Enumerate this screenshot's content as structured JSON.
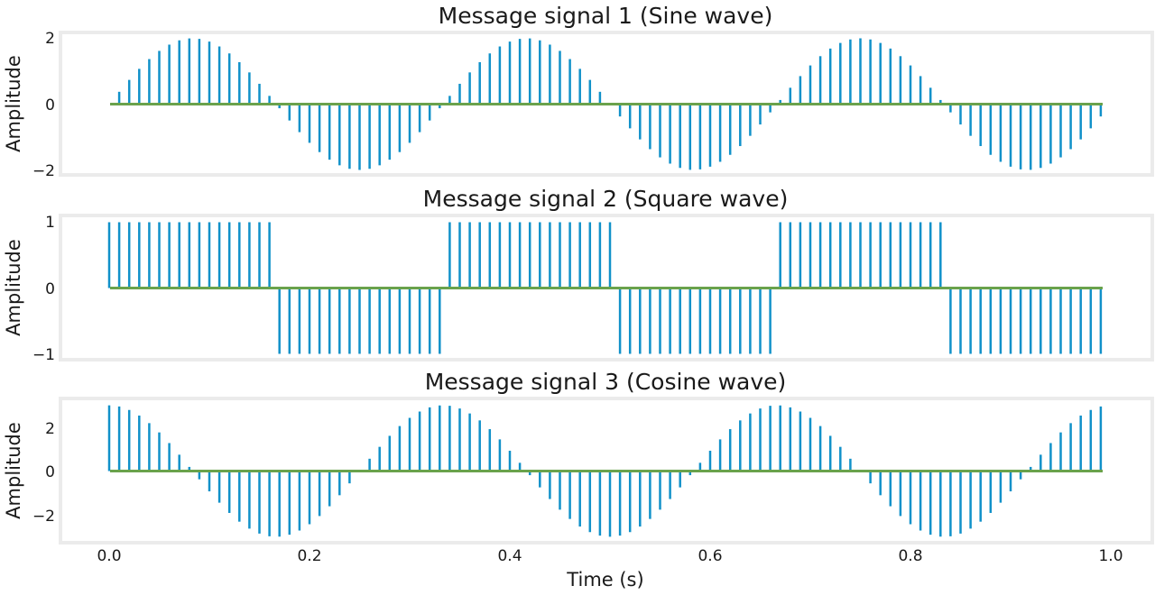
{
  "colors": {
    "stem": "#1191c9",
    "baseline": "#6aa24c",
    "frame": "#ebebeb"
  },
  "xlabel": "Time (s)",
  "xticks": [
    0.0,
    0.2,
    0.4,
    0.6,
    0.8,
    1.0
  ],
  "xtick_labels": [
    "0.0",
    "0.2",
    "0.4",
    "0.6",
    "0.8",
    "1.0"
  ],
  "xlim": [
    -0.05,
    1.04
  ],
  "chart_data": [
    {
      "type": "stem",
      "title": "Message signal 1 (Sine wave)",
      "ylabel": "Amplitude",
      "ylim": [
        -2.1,
        2.1
      ],
      "yticks": [
        -2,
        0,
        2
      ],
      "ytick_labels": [
        "−2",
        "0",
        "2"
      ],
      "signal": "sine",
      "amplitude": 2,
      "frequency_hz": 3,
      "sample_interval_s": 0.01,
      "t_start": 0.0,
      "t_end": 0.99
    },
    {
      "type": "stem",
      "title": "Message signal 2 (Square wave)",
      "ylabel": "Amplitude",
      "ylim": [
        -1.05,
        1.05
      ],
      "yticks": [
        -1,
        0,
        1
      ],
      "ytick_labels": [
        "−1",
        "0",
        "1"
      ],
      "signal": "square",
      "amplitude": 1,
      "frequency_hz": 3,
      "sample_interval_s": 0.01,
      "t_start": 0.0,
      "t_end": 0.99
    },
    {
      "type": "stem",
      "title": "Message signal 3 (Cosine wave)",
      "ylabel": "Amplitude",
      "ylim": [
        -3.3,
        3.3
      ],
      "yticks": [
        -2,
        0,
        2
      ],
      "ytick_labels": [
        "−2",
        "0",
        "2"
      ],
      "signal": "cosine",
      "amplitude": 3,
      "frequency_hz": 3,
      "sample_interval_s": 0.01,
      "t_start": 0.0,
      "t_end": 0.99
    }
  ]
}
